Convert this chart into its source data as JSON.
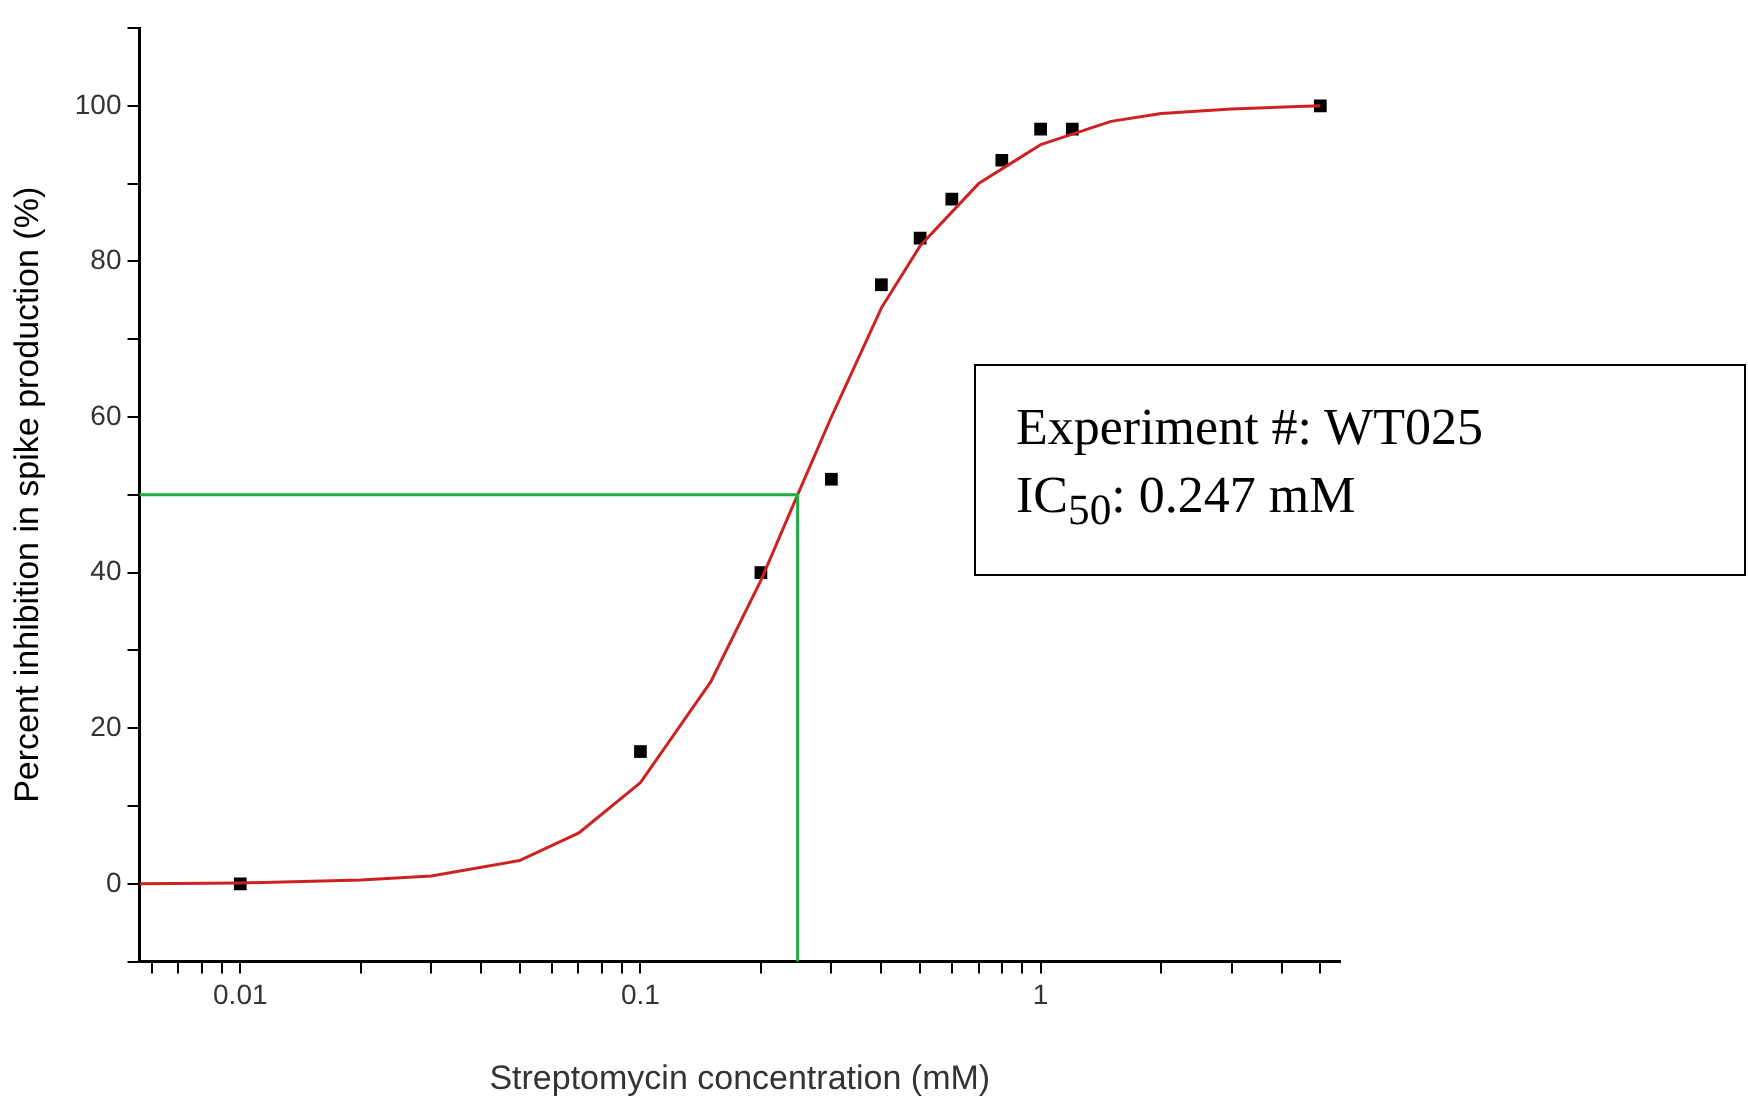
{
  "chart_data": {
    "type": "scatter",
    "xlabel": "Streptomycin concentration (mM)",
    "ylabel": "Percent inhibition in spike production (%)",
    "log": "x",
    "grid": false,
    "legend": false,
    "xlim": [
      0.0056,
      5.6
    ],
    "ylim": [
      -10,
      110
    ],
    "xticks": [
      {
        "value": 0.006,
        "label": null
      },
      {
        "value": 0.007,
        "label": null
      },
      {
        "value": 0.008,
        "label": null
      },
      {
        "value": 0.009,
        "label": null
      },
      0.01,
      {
        "value": 0.02,
        "label": null
      },
      {
        "value": 0.03,
        "label": null
      },
      {
        "value": 0.04,
        "label": null
      },
      {
        "value": 0.05,
        "label": null
      },
      {
        "value": 0.06,
        "label": null
      },
      {
        "value": 0.07,
        "label": null
      },
      {
        "value": 0.08,
        "label": null
      },
      {
        "value": 0.09,
        "label": null
      },
      0.1,
      {
        "value": 0.2,
        "label": null
      },
      {
        "value": 0.3,
        "label": null
      },
      {
        "value": 0.4,
        "label": null
      },
      {
        "value": 0.5,
        "label": null
      },
      {
        "value": 0.6,
        "label": null
      },
      {
        "value": 0.7,
        "label": null
      },
      {
        "value": 0.8,
        "label": null
      },
      {
        "value": 0.9,
        "label": null
      },
      1,
      {
        "value": 2,
        "label": null
      },
      {
        "value": 3,
        "label": null
      },
      {
        "value": 4,
        "label": null
      },
      {
        "value": 5,
        "label": null
      }
    ],
    "yticks": [
      {
        "value": -10,
        "label": null
      },
      0,
      {
        "value": 10,
        "label": null
      },
      20,
      {
        "value": 30,
        "label": null
      },
      40,
      {
        "value": 50,
        "label": null
      },
      60,
      {
        "value": 70,
        "label": null
      },
      80,
      {
        "value": 90,
        "label": null
      },
      100,
      {
        "value": 110,
        "label": null
      }
    ],
    "series": [
      {
        "type": "line",
        "color": "#22aa44",
        "marker": "none",
        "x": [
          0.0056,
          0.247,
          0.247
        ],
        "values": [
          50,
          50,
          -10
        ]
      },
      {
        "type": "line",
        "color": "#cc2222",
        "marker": "none",
        "x": [
          0.0056,
          0.01,
          0.02,
          0.03,
          0.05,
          0.07,
          0.1,
          0.15,
          0.2,
          0.247,
          0.3,
          0.4,
          0.5,
          0.7,
          1,
          1.5,
          2,
          3,
          5
        ],
        "values": [
          0,
          0.1,
          0.5,
          1,
          3,
          6.5,
          13,
          26,
          39,
          50,
          60,
          74,
          82,
          90,
          95,
          98,
          99,
          99.6,
          100
        ]
      },
      {
        "type": "scatter",
        "color": "#000000",
        "marker": "square",
        "x": [
          0.01,
          0.1,
          0.2,
          0.3,
          0.4,
          0.5,
          0.6,
          0.8,
          1.0,
          1.2,
          5
        ],
        "values": [
          0,
          17,
          40,
          52,
          77,
          83,
          88,
          93,
          97,
          97,
          100
        ]
      }
    ],
    "annotations": [
      "Experiment #: WT025",
      "IC$_{50}$: 0.247 mM"
    ]
  }
}
